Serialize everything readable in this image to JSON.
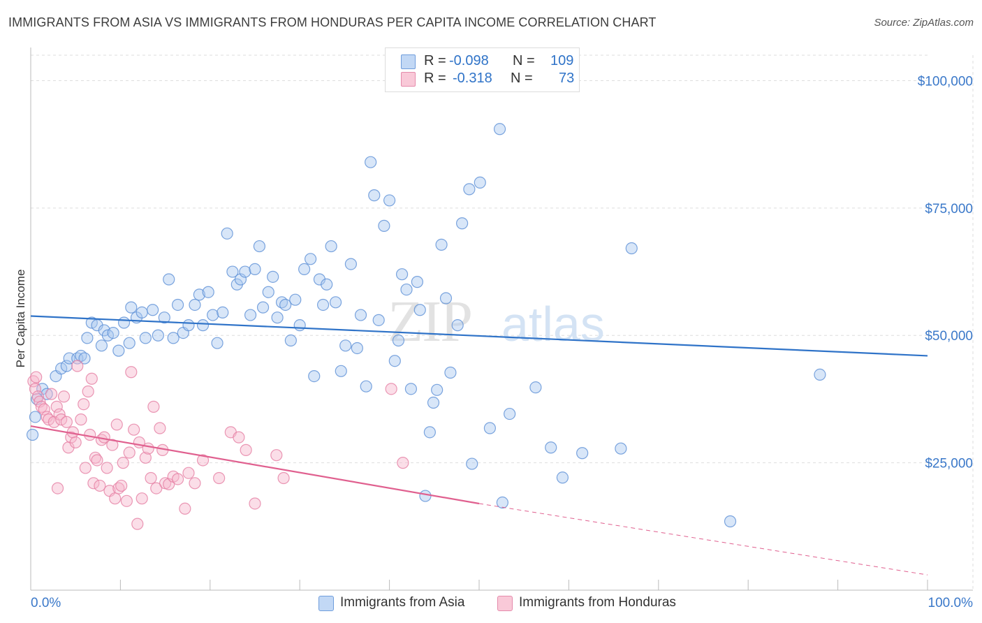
{
  "title": "IMMIGRANTS FROM ASIA VS IMMIGRANTS FROM HONDURAS PER CAPITA INCOME CORRELATION CHART",
  "source": "Source: ZipAtlas.com",
  "watermark": {
    "part1": "ZIP",
    "part2": "atlas"
  },
  "legend": {
    "asia": {
      "r_label": "R =",
      "r_value": "-0.098",
      "n_label": "N =",
      "n_value": "109"
    },
    "honduras": {
      "r_label": "R =",
      "r_value": "-0.318",
      "n_label": "N =",
      "n_value": "73"
    }
  },
  "colors": {
    "asia_fill": "#a9c8f0",
    "asia_stroke": "#5b8fd6",
    "asia_line": "#2f73c8",
    "honduras_fill": "#f6b6cb",
    "honduras_stroke": "#e57ea3",
    "honduras_line": "#e0608f",
    "tick_label": "#3a78c9",
    "grid": "#dddddd"
  },
  "chart_data": {
    "type": "scatter",
    "title": "IMMIGRANTS FROM ASIA VS IMMIGRANTS FROM HONDURAS PER CAPITA INCOME CORRELATION CHART",
    "xlabel": "",
    "ylabel": "Per Capita Income",
    "xlim": [
      0,
      100
    ],
    "ylim": [
      0,
      105000
    ],
    "x_tick_labels": [
      "0.0%",
      "100.0%"
    ],
    "y_ticks": [
      25000,
      50000,
      75000,
      100000
    ],
    "y_tick_labels": [
      "$25,000",
      "$50,000",
      "$75,000",
      "$100,000"
    ],
    "grid": true,
    "legend_position": "top-center",
    "series": [
      {
        "name": "Immigrants from Asia",
        "trend": {
          "x": [
            0,
            100
          ],
          "y": [
            53800,
            46000
          ]
        },
        "points": [
          [
            0.2,
            30500
          ],
          [
            0.5,
            34000
          ],
          [
            0.7,
            37500
          ],
          [
            1.3,
            39500
          ],
          [
            1.8,
            38500
          ],
          [
            2.8,
            42000
          ],
          [
            3.4,
            43500
          ],
          [
            4.0,
            44000
          ],
          [
            4.3,
            45500
          ],
          [
            5.2,
            45500
          ],
          [
            5.6,
            46000
          ],
          [
            6.0,
            45500
          ],
          [
            6.3,
            49500
          ],
          [
            6.8,
            52500
          ],
          [
            7.4,
            52000
          ],
          [
            7.9,
            48000
          ],
          [
            8.2,
            51000
          ],
          [
            8.6,
            50000
          ],
          [
            9.2,
            50500
          ],
          [
            9.8,
            47000
          ],
          [
            10.4,
            52500
          ],
          [
            11.0,
            48500
          ],
          [
            11.2,
            55500
          ],
          [
            11.8,
            53500
          ],
          [
            12.4,
            54500
          ],
          [
            12.8,
            49500
          ],
          [
            13.6,
            55000
          ],
          [
            14.2,
            50000
          ],
          [
            14.9,
            53500
          ],
          [
            15.4,
            61000
          ],
          [
            15.9,
            49500
          ],
          [
            16.4,
            56000
          ],
          [
            17.0,
            50500
          ],
          [
            17.6,
            52000
          ],
          [
            18.3,
            56000
          ],
          [
            18.8,
            58000
          ],
          [
            19.2,
            52000
          ],
          [
            19.8,
            58500
          ],
          [
            20.3,
            54000
          ],
          [
            20.8,
            48500
          ],
          [
            21.4,
            54500
          ],
          [
            21.9,
            70000
          ],
          [
            22.5,
            62500
          ],
          [
            23.0,
            60000
          ],
          [
            23.4,
            61000
          ],
          [
            23.9,
            62500
          ],
          [
            24.5,
            54000
          ],
          [
            25.0,
            63000
          ],
          [
            25.5,
            67500
          ],
          [
            25.9,
            55500
          ],
          [
            26.5,
            58500
          ],
          [
            27.0,
            61500
          ],
          [
            27.5,
            53500
          ],
          [
            28.0,
            56500
          ],
          [
            28.4,
            56000
          ],
          [
            29.0,
            49000
          ],
          [
            29.5,
            57000
          ],
          [
            30.0,
            52000
          ],
          [
            30.5,
            63000
          ],
          [
            31.2,
            65000
          ],
          [
            31.6,
            42000
          ],
          [
            32.2,
            61000
          ],
          [
            32.6,
            56000
          ],
          [
            33.0,
            60000
          ],
          [
            33.5,
            67500
          ],
          [
            34.0,
            56500
          ],
          [
            34.6,
            43000
          ],
          [
            35.1,
            48000
          ],
          [
            35.7,
            64000
          ],
          [
            36.4,
            47500
          ],
          [
            36.8,
            54000
          ],
          [
            37.4,
            40000
          ],
          [
            37.9,
            84000
          ],
          [
            38.3,
            77500
          ],
          [
            38.8,
            53000
          ],
          [
            39.4,
            71500
          ],
          [
            40.0,
            76500
          ],
          [
            40.6,
            45000
          ],
          [
            41.0,
            49000
          ],
          [
            41.4,
            62000
          ],
          [
            41.9,
            59000
          ],
          [
            42.4,
            39500
          ],
          [
            43.1,
            60500
          ],
          [
            43.4,
            55000
          ],
          [
            44.0,
            18500
          ],
          [
            44.5,
            31000
          ],
          [
            44.9,
            36800
          ],
          [
            45.3,
            39300
          ],
          [
            45.8,
            67800
          ],
          [
            46.3,
            57300
          ],
          [
            46.8,
            42700
          ],
          [
            47.6,
            52000
          ],
          [
            48.1,
            72000
          ],
          [
            48.9,
            78700
          ],
          [
            49.2,
            24800
          ],
          [
            50.1,
            80000
          ],
          [
            51.2,
            31800
          ],
          [
            52.3,
            90500
          ],
          [
            52.6,
            17200
          ],
          [
            53.4,
            34600
          ],
          [
            56.3,
            39800
          ],
          [
            58.0,
            28000
          ],
          [
            59.3,
            22100
          ],
          [
            61.5,
            26900
          ],
          [
            65.8,
            27800
          ],
          [
            67.0,
            67100
          ],
          [
            78.0,
            13500
          ],
          [
            88.0,
            42300
          ]
        ]
      },
      {
        "name": "Immigrants from Honduras",
        "trend": {
          "x": [
            0,
            50
          ],
          "y": [
            32200,
            17000
          ]
        },
        "trend_dashed": {
          "x": [
            50,
            100
          ],
          "y": [
            17000,
            3000
          ]
        },
        "points": [
          [
            0.3,
            41000
          ],
          [
            0.5,
            39500
          ],
          [
            0.8,
            38000
          ],
          [
            1.0,
            37000
          ],
          [
            1.2,
            36000
          ],
          [
            1.5,
            35500
          ],
          [
            1.8,
            34000
          ],
          [
            2.0,
            33500
          ],
          [
            2.3,
            38500
          ],
          [
            2.6,
            33000
          ],
          [
            2.9,
            36000
          ],
          [
            3.2,
            34500
          ],
          [
            3.4,
            33500
          ],
          [
            3.7,
            38000
          ],
          [
            4.0,
            33000
          ],
          [
            4.2,
            28000
          ],
          [
            4.5,
            30000
          ],
          [
            4.7,
            31000
          ],
          [
            5.0,
            29000
          ],
          [
            5.2,
            44000
          ],
          [
            5.6,
            33500
          ],
          [
            5.9,
            36500
          ],
          [
            6.1,
            24000
          ],
          [
            6.4,
            39000
          ],
          [
            6.6,
            30500
          ],
          [
            7.0,
            21000
          ],
          [
            7.2,
            26000
          ],
          [
            7.4,
            25500
          ],
          [
            7.7,
            20500
          ],
          [
            7.9,
            29500
          ],
          [
            8.2,
            30000
          ],
          [
            8.5,
            24000
          ],
          [
            8.8,
            19500
          ],
          [
            9.1,
            28500
          ],
          [
            9.4,
            18000
          ],
          [
            9.6,
            32500
          ],
          [
            9.8,
            20000
          ],
          [
            10.1,
            20500
          ],
          [
            10.3,
            25000
          ],
          [
            10.7,
            17500
          ],
          [
            11.0,
            27000
          ],
          [
            11.2,
            42800
          ],
          [
            11.5,
            31500
          ],
          [
            11.9,
            13000
          ],
          [
            12.1,
            29000
          ],
          [
            12.4,
            18000
          ],
          [
            12.8,
            26000
          ],
          [
            13.1,
            27800
          ],
          [
            13.4,
            22000
          ],
          [
            13.7,
            36000
          ],
          [
            14.0,
            20000
          ],
          [
            14.4,
            31800
          ],
          [
            14.7,
            27500
          ],
          [
            15.0,
            21000
          ],
          [
            15.4,
            20800
          ],
          [
            15.9,
            22300
          ],
          [
            16.4,
            21800
          ],
          [
            17.2,
            16000
          ],
          [
            17.6,
            23000
          ],
          [
            18.3,
            21000
          ],
          [
            19.2,
            25500
          ],
          [
            21.0,
            22000
          ],
          [
            22.3,
            31000
          ],
          [
            23.2,
            30000
          ],
          [
            24.0,
            27500
          ],
          [
            25.0,
            17000
          ],
          [
            27.4,
            26500
          ],
          [
            28.2,
            22000
          ],
          [
            40.2,
            39500
          ],
          [
            41.5,
            25000
          ],
          [
            3.0,
            20000
          ],
          [
            6.8,
            41500
          ],
          [
            0.6,
            41800
          ]
        ]
      }
    ]
  },
  "bottom_legend": {
    "asia": "Immigrants from Asia",
    "honduras": "Immigrants from Honduras"
  }
}
